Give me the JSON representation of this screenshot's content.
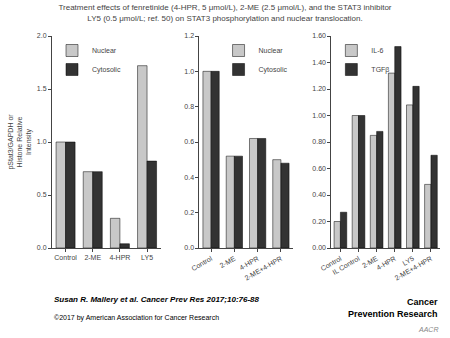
{
  "title": "Treatment effects of fenretinide (4-HPR, 5 μmol/L), 2-ME (2.5 μmol/L), and the STAT3 inhibitor",
  "subtitle": "LY5 (0.5 μmol/L; ref. 50) on STAT3 phosphorylation and nuclear translocation.",
  "annotations": [
    "Susan R. Mallery et al. Cancer Prev Res 2017;10:76-88",
    "©2017 by American Association for Cancer Research",
    "Cancer\nPrevention Research",
    "AACR"
  ],
  "chart_data": [
    {
      "type": "bar",
      "categories": [
        "Control",
        "2-ME",
        "4-HPR",
        "LY5"
      ],
      "series": [
        {
          "name": "Nuclear",
          "color": "#c8c8c8",
          "values": [
            1.0,
            0.72,
            0.28,
            1.72
          ]
        },
        {
          "name": "Cytosolic",
          "color": "#333333",
          "values": [
            1.0,
            0.72,
            0.04,
            0.82
          ]
        }
      ],
      "ylabel": "pStat3/GAPDH or\nHistone Relative\nIntensity",
      "ylim": [
        0,
        2.0
      ],
      "yticks": [
        {
          "value": 0,
          "label": "0.0"
        },
        0.5,
        {
          "value": 1.0,
          "label": "1.0"
        },
        1.5,
        {
          "value": 2.0,
          "label": "2.0"
        }
      ],
      "grid": false,
      "legend": "upper left"
    },
    {
      "type": "bar",
      "categories": [
        "Control",
        "2-ME",
        "4-HPR",
        "2-ME+4-HPR"
      ],
      "series": [
        {
          "name": "Nuclear",
          "color": "#c8c8c8",
          "values": [
            1.0,
            0.52,
            0.62,
            0.5
          ]
        },
        {
          "name": "Cytosolic",
          "color": "#333333",
          "values": [
            1.0,
            0.52,
            0.62,
            0.48
          ]
        }
      ],
      "ylim": [
        0,
        1.2
      ],
      "yticks": [
        {
          "value": 0,
          "label": "0.0"
        },
        0.2,
        0.4,
        0.6,
        0.8,
        {
          "value": 1.0,
          "label": "1.0"
        },
        1.2
      ],
      "grid": false,
      "legend": "upper right"
    },
    {
      "type": "bar",
      "categories": [
        "Control",
        "IL Control",
        "2-ME",
        "4-HPR",
        "LY5",
        "2-ME+4-HPR"
      ],
      "series": [
        {
          "name": "IL-6",
          "color": "#c8c8c8",
          "values": [
            0.2,
            1.0,
            0.85,
            1.32,
            1.08,
            0.48
          ]
        },
        {
          "name": "TGFβ",
          "color": "#333333",
          "values": [
            0.27,
            1.0,
            0.88,
            1.52,
            1.22,
            0.7
          ]
        }
      ],
      "ylim": [
        0,
        1.6
      ],
      "yticks": [
        {
          "value": 0,
          "label": "0.00"
        },
        {
          "value": 0.2,
          "label": "0.20"
        },
        {
          "value": 0.4,
          "label": "0.40"
        },
        {
          "value": 0.6,
          "label": "0.60"
        },
        {
          "value": 0.8,
          "label": "0.80"
        },
        {
          "value": 1.0,
          "label": "1.00"
        },
        {
          "value": 1.2,
          "label": "1.20"
        },
        {
          "value": 1.4,
          "label": "1.40"
        },
        {
          "value": 1.6,
          "label": "1.60"
        }
      ],
      "grid": false,
      "legend": "upper left"
    }
  ]
}
